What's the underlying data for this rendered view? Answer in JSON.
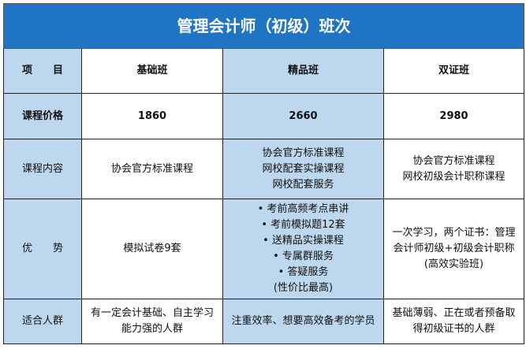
{
  "title": "管理会计师（初级）班次",
  "colors": {
    "title_bg": "#1f75c4",
    "highlight_bg": "#bdd7ee"
  },
  "header": {
    "label": "项　　目",
    "plans": [
      "基础班",
      "精品班",
      "双证班"
    ]
  },
  "rows": [
    {
      "label": "课程价格",
      "cells": [
        [
          "1860"
        ],
        [
          "2660"
        ],
        [
          "2980"
        ]
      ]
    },
    {
      "label": "课程内容",
      "cells": [
        [
          "协会官方标准课程"
        ],
        [
          "协会官方标准课程",
          "网校配套实操课程",
          "网校配套服务"
        ],
        [
          "协会官方标准课程",
          "网校初级会计职称课程"
        ]
      ]
    },
    {
      "label": "优　　势",
      "cells": [
        [
          "模拟试卷9套"
        ],
        [
          "• 考前高频考点串讲",
          "• 考前模拟题12套",
          "• 送精品实操课程",
          "• 专属群服务",
          "• 答疑服务",
          "(性价比最高)"
        ],
        [
          "一次学习，两个证书：管理",
          "会计师初级+初级会计职称",
          "(高效实验班)"
        ]
      ]
    },
    {
      "label": "适合人群",
      "cells": [
        [
          "有一定会计基础、自主学习",
          "能力强的人群"
        ],
        [
          "注重效率、想要高效备考的学员"
        ],
        [
          "基础薄弱、正在或者预备取",
          "得初级证书的人群"
        ]
      ]
    }
  ]
}
